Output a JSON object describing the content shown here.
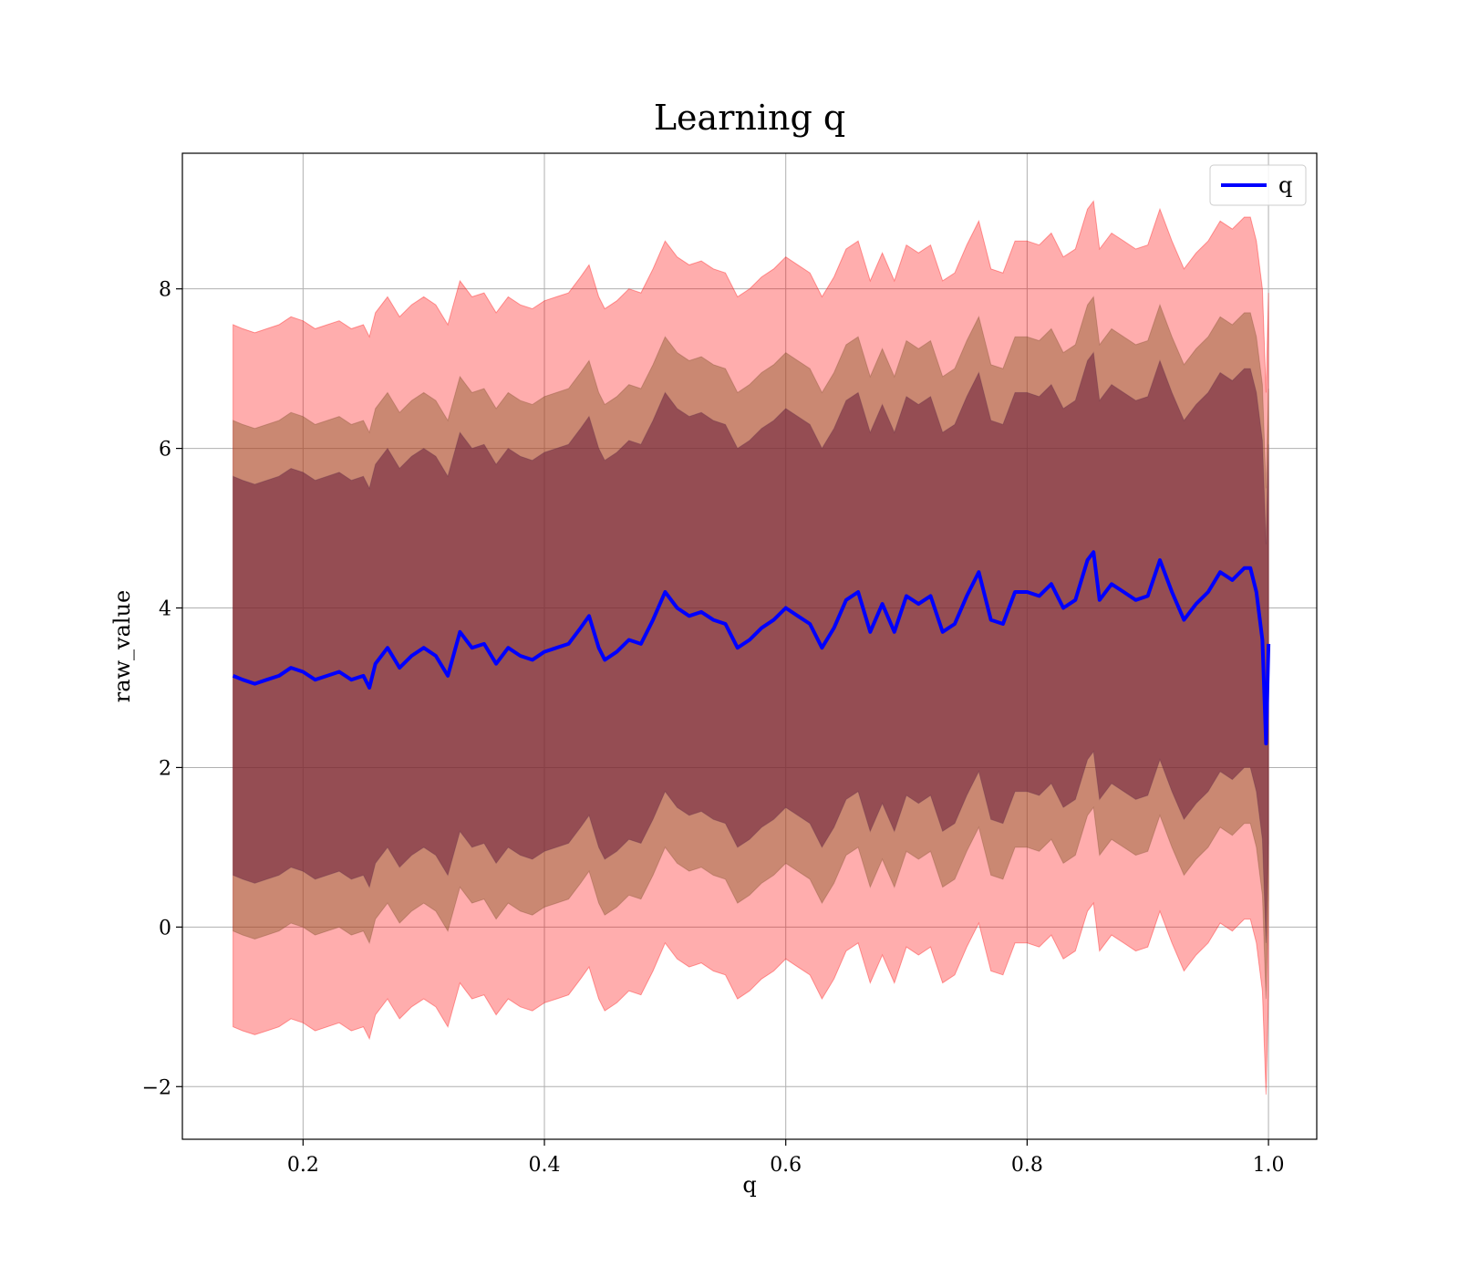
{
  "chart_data": {
    "type": "line",
    "title": "Learning q",
    "xlabel": "q",
    "ylabel": "raw_value",
    "xlim": [
      0.1,
      1.04
    ],
    "ylim": [
      -2.66,
      9.7
    ],
    "x_ticks": [
      0.2,
      0.4,
      0.6,
      0.8,
      1.0
    ],
    "x_tick_labels": [
      "0.2",
      "0.4",
      "0.6",
      "0.8",
      "1.0"
    ],
    "y_ticks": [
      -2,
      0,
      2,
      4,
      6,
      8
    ],
    "y_tick_labels": [
      "−2",
      "0",
      "2",
      "4",
      "6",
      "8"
    ],
    "grid": true,
    "legend": {
      "position": "top-right",
      "entries": [
        "q"
      ]
    },
    "colors": {
      "line": "#0000ff",
      "band": "#ff0000",
      "inner_band": "#6a1d3a"
    },
    "x": [
      0.142,
      0.15,
      0.16,
      0.17,
      0.18,
      0.19,
      0.2,
      0.21,
      0.22,
      0.23,
      0.24,
      0.25,
      0.255,
      0.26,
      0.27,
      0.28,
      0.29,
      0.3,
      0.31,
      0.32,
      0.33,
      0.34,
      0.35,
      0.36,
      0.37,
      0.38,
      0.39,
      0.4,
      0.41,
      0.42,
      0.43,
      0.437,
      0.445,
      0.45,
      0.46,
      0.47,
      0.48,
      0.49,
      0.5,
      0.51,
      0.52,
      0.53,
      0.54,
      0.55,
      0.56,
      0.57,
      0.58,
      0.59,
      0.6,
      0.61,
      0.62,
      0.63,
      0.64,
      0.65,
      0.66,
      0.67,
      0.68,
      0.69,
      0.7,
      0.71,
      0.72,
      0.73,
      0.74,
      0.75,
      0.76,
      0.77,
      0.78,
      0.79,
      0.8,
      0.81,
      0.82,
      0.83,
      0.84,
      0.85,
      0.855,
      0.86,
      0.87,
      0.88,
      0.89,
      0.9,
      0.91,
      0.92,
      0.93,
      0.94,
      0.95,
      0.96,
      0.97,
      0.98,
      0.985,
      0.99,
      0.995,
      0.998,
      1.0
    ],
    "series": [
      {
        "name": "q",
        "values": [
          3.15,
          3.1,
          3.05,
          3.1,
          3.15,
          3.25,
          3.2,
          3.1,
          3.15,
          3.2,
          3.1,
          3.15,
          3.0,
          3.3,
          3.5,
          3.25,
          3.4,
          3.5,
          3.4,
          3.15,
          3.7,
          3.5,
          3.55,
          3.3,
          3.5,
          3.4,
          3.35,
          3.45,
          3.5,
          3.55,
          3.75,
          3.9,
          3.5,
          3.35,
          3.45,
          3.6,
          3.55,
          3.85,
          4.2,
          4.0,
          3.9,
          3.95,
          3.85,
          3.8,
          3.5,
          3.6,
          3.75,
          3.85,
          4.0,
          3.9,
          3.8,
          3.5,
          3.75,
          4.1,
          4.2,
          3.7,
          4.05,
          3.7,
          4.15,
          4.05,
          4.15,
          3.7,
          3.8,
          4.15,
          4.45,
          3.85,
          3.8,
          4.2,
          4.2,
          4.15,
          4.3,
          4.0,
          4.1,
          4.6,
          4.7,
          4.1,
          4.3,
          4.2,
          4.1,
          4.15,
          4.6,
          4.2,
          3.85,
          4.05,
          4.2,
          4.45,
          4.35,
          4.5,
          4.5,
          4.2,
          3.6,
          2.3,
          3.55
        ]
      }
    ],
    "bands": [
      {
        "name": "outer",
        "lower_offset": -4.4,
        "upper_offset": 4.4
      },
      {
        "name": "inner",
        "lower_offset": -3.2,
        "upper_offset": 3.2
      }
    ]
  }
}
